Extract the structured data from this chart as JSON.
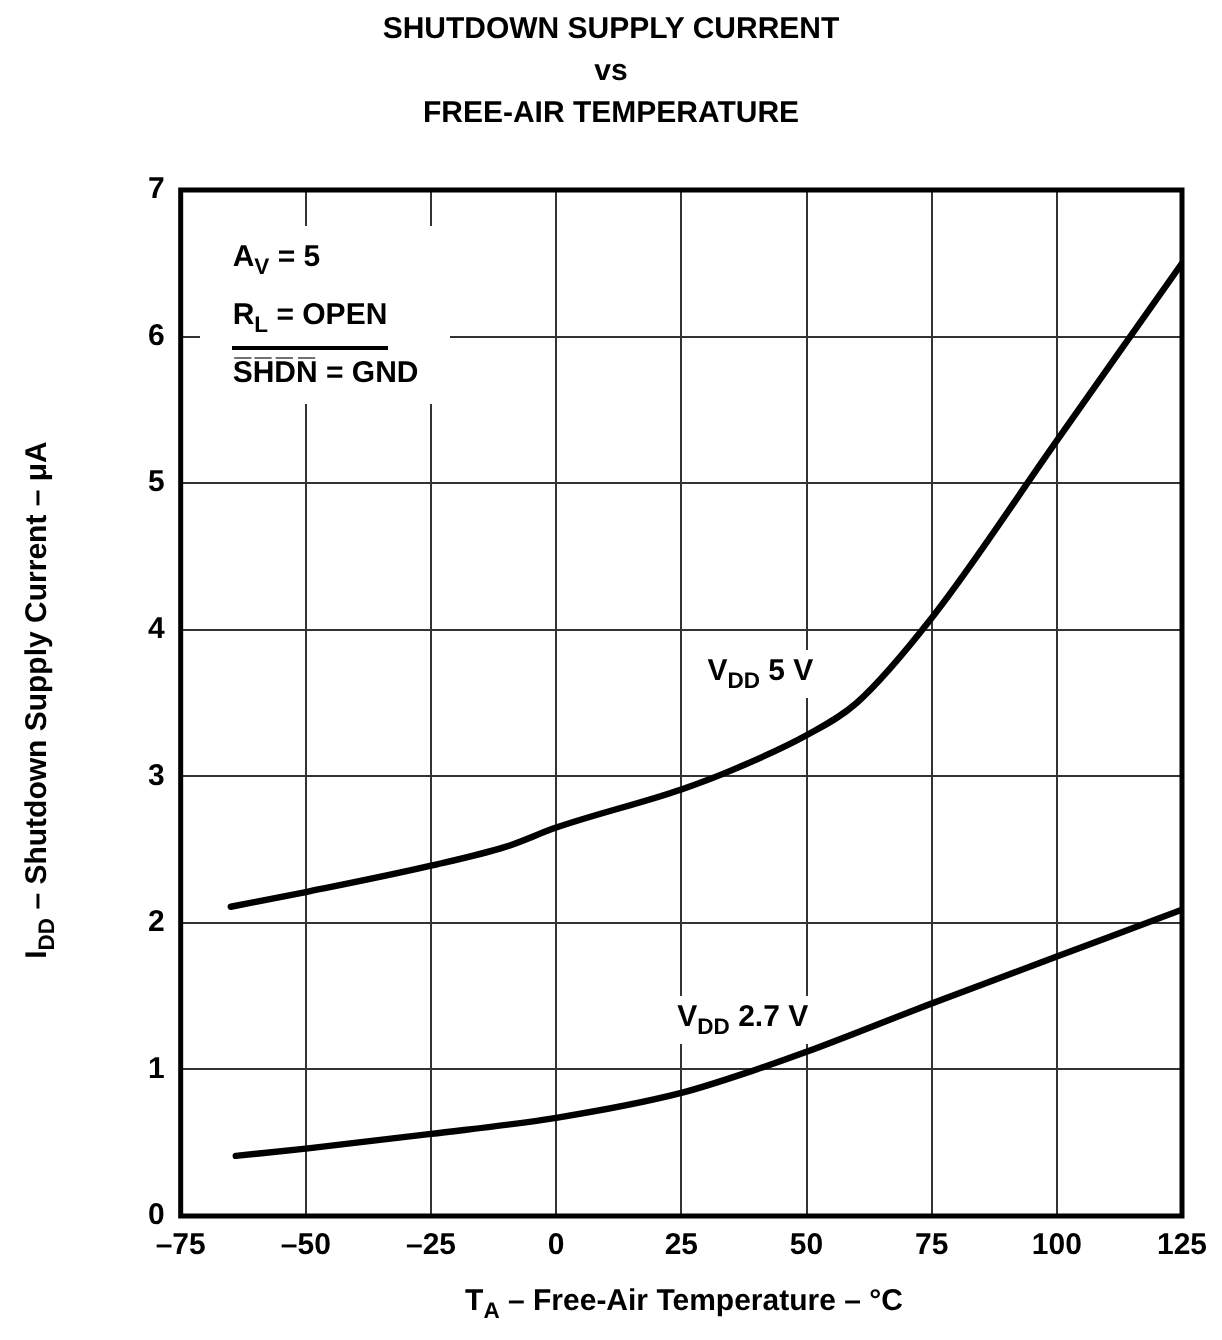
{
  "chart_data": {
    "type": "line",
    "title": "SHUTDOWN SUPPLY CURRENT\nvs\nFREE-AIR TEMPERATURE",
    "xlabel": "T$_{A}$ – Free-Air Temperature – °C",
    "ylabel": "I$_{DD}$ – Shutdown Supply Current – μA",
    "annotations": [
      "A$_{V}$ = 5",
      "R$_{L}$ = OPEN",
      "S̅H̅D̅N̅ = GND"
    ],
    "xlim": [
      -75,
      125
    ],
    "xticks": [
      {
        "value": -75,
        "label": "–75"
      },
      {
        "value": -50,
        "label": "–50"
      },
      {
        "value": -25,
        "label": "–25"
      },
      0,
      25,
      50,
      75,
      100,
      125
    ],
    "ylim": [
      0,
      7
    ],
    "yticks": [
      0,
      1,
      2,
      3,
      4,
      5,
      6,
      7
    ],
    "grid": true,
    "marker": "none",
    "line_style": "solid",
    "series": [
      {
        "name": "V$_{DD}$ 5 V",
        "color": "#000000",
        "x": [
          -65,
          -50,
          -25,
          -10,
          0,
          25,
          35,
          50,
          60,
          75,
          100,
          125
        ],
        "values": [
          2.11,
          2.21,
          2.39,
          2.52,
          2.65,
          2.91,
          3.04,
          3.28,
          3.5,
          4.08,
          5.29,
          6.5
        ]
      },
      {
        "name": "V$_{DD}$ 2.7 V",
        "color": "#000000",
        "x": [
          -64,
          -50,
          -25,
          0,
          25,
          40,
          50,
          75,
          100,
          125
        ],
        "values": [
          0.41,
          0.46,
          0.56,
          0.67,
          0.84,
          1.0,
          1.12,
          1.45,
          1.77,
          2.09
        ]
      }
    ]
  }
}
